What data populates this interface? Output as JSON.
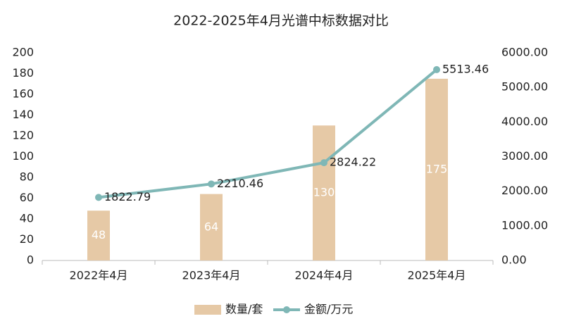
{
  "chart_data": {
    "type": "bar-line",
    "title": "2022-2025年4月光谱中标数据对比",
    "categories": [
      "2022年4月",
      "2023年4月",
      "2024年4月",
      "2025年4月"
    ],
    "series": [
      {
        "name": "数量/套",
        "type": "bar",
        "color": "#e6c9a6",
        "values": [
          48,
          64,
          130,
          175
        ]
      },
      {
        "name": "金额/万元",
        "type": "line",
        "axis": "y2",
        "color": "#7fb7b6",
        "values": [
          1822.79,
          2210.46,
          2824.22,
          5513.46
        ]
      }
    ],
    "ylim": [
      0,
      200
    ],
    "yticks": [
      0,
      20,
      40,
      60,
      80,
      100,
      120,
      140,
      160,
      180,
      200
    ],
    "y2lim": [
      0,
      6000
    ],
    "y2ticks": [
      {
        "value": 0,
        "label": "0.00"
      },
      {
        "value": 1000,
        "label": "1000.00"
      },
      {
        "value": 2000,
        "label": "2000.00"
      },
      {
        "value": 3000,
        "label": "3000.00"
      },
      {
        "value": 4000,
        "label": "4000.00"
      },
      {
        "value": 5000,
        "label": "5000.00"
      },
      {
        "value": 6000,
        "label": "6000.00"
      }
    ],
    "grid": false,
    "legend": "bottom"
  }
}
